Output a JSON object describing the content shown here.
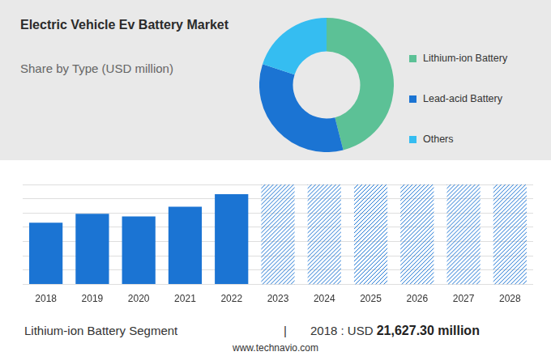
{
  "chart_data": [
    {
      "type": "doughnut",
      "title": "Electric Vehicle Ev Battery Market",
      "subtitle": "Share by Type (USD million)",
      "categories": [
        "Lithium-ion Battery",
        "Lead-acid Battery",
        "Others"
      ],
      "values": [
        46,
        34,
        20
      ],
      "colors": [
        "#5cc196",
        "#1b74d3",
        "#35bdf1"
      ],
      "legend": "right"
    },
    {
      "type": "bar",
      "categories": [
        "2018",
        "2019",
        "2020",
        "2021",
        "2022",
        "2023",
        "2024",
        "2025",
        "2026",
        "2027",
        "2028"
      ],
      "values": [
        21627.3,
        24700,
        23800,
        27200,
        31600,
        null,
        null,
        null,
        null,
        null,
        null
      ],
      "color": "#1b74d3",
      "ylim": [
        0,
        35000
      ],
      "yticks": [
        0,
        5000,
        10000,
        15000,
        20000,
        25000,
        30000,
        35000
      ],
      "grid": true,
      "tick_labels": "x"
    }
  ],
  "footer": {
    "segment": "Lithium-ion Battery Segment",
    "separator": "|",
    "year_label": "2018 : USD",
    "value": "21,627.30 million"
  },
  "source": "www.technavio.com"
}
